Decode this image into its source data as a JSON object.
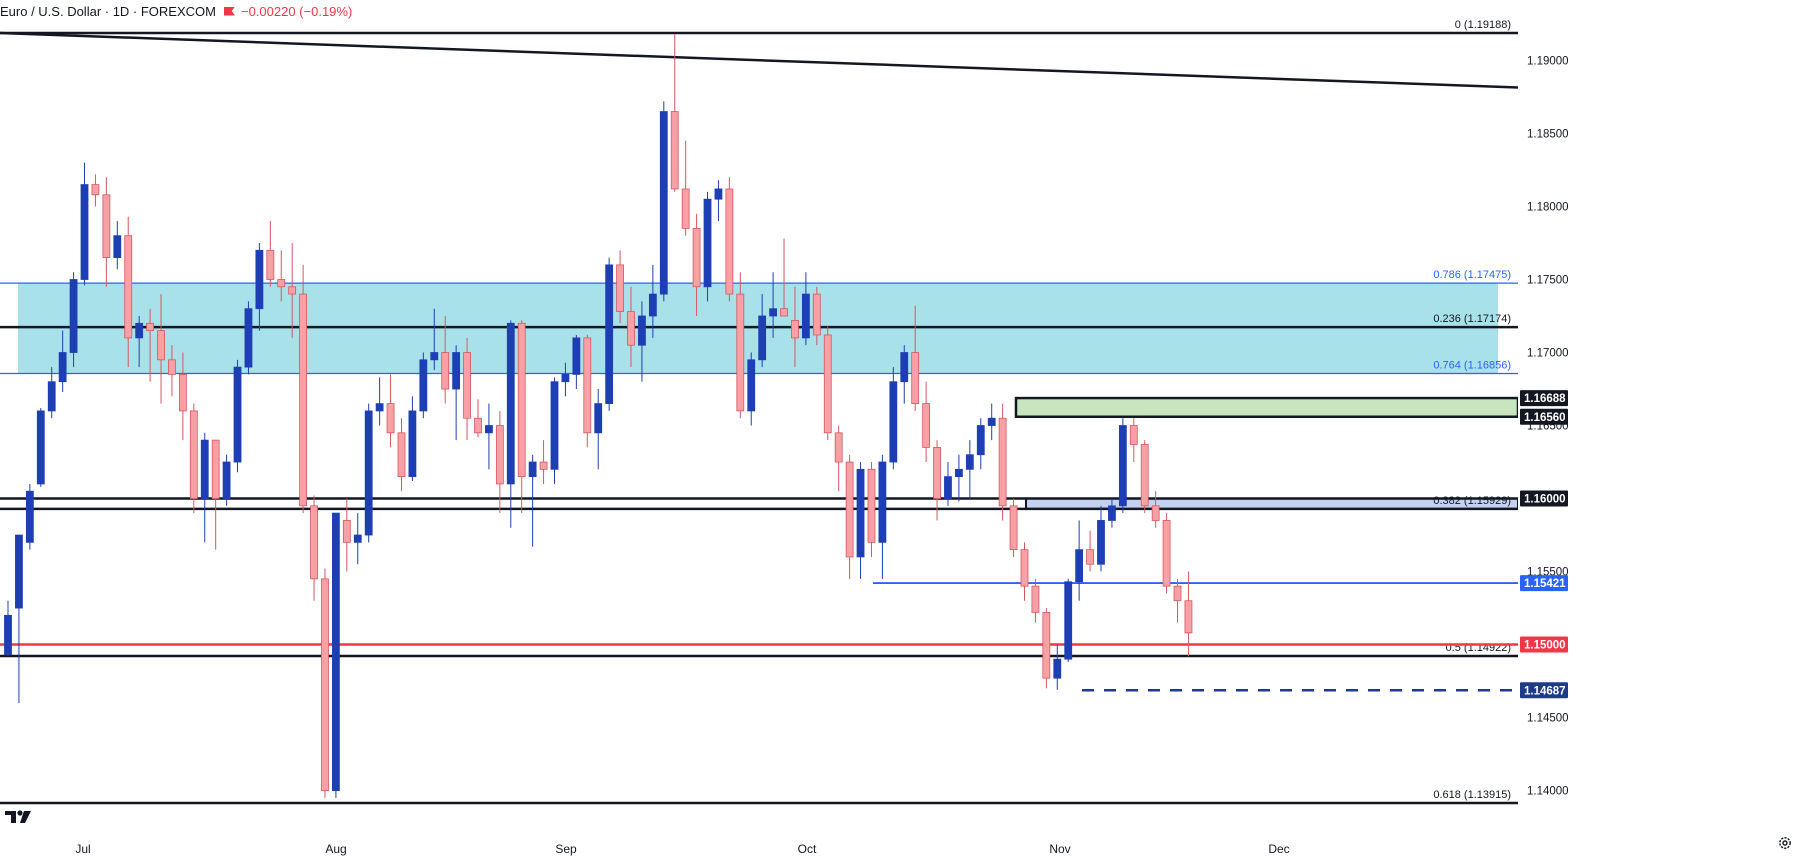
{
  "header": {
    "symbol": "Euro / U.S. Dollar · 1D · FOREXCOM",
    "change": "−0.00220 (−0.19%)"
  },
  "colors": {
    "up": "#1e3fb4",
    "down": "#f7a1a6",
    "down_border": "#d8565e",
    "zone": "#a9e1ea",
    "zone_green": "#c7e6c0",
    "red_level": "#f23645",
    "blue_line": "#2962ff",
    "axis_text": "#131722"
  },
  "chart_data": {
    "type": "candlestick",
    "ylim": [
      1.1385,
      1.1935
    ],
    "price_ticks": [
      "1.19000",
      "1.18500",
      "1.18000",
      "1.17500",
      "1.17000",
      "1.16500",
      "1.16000",
      "1.15500",
      "1.15000",
      "1.14500",
      "1.14000"
    ],
    "x_labels": [
      "Jul",
      "Aug",
      "Sep",
      "Oct",
      "Nov",
      "Dec"
    ],
    "candles": [
      {
        "o": 1.1493,
        "h": 1.153,
        "l": 1.1492,
        "c": 1.152
      },
      {
        "o": 1.1525,
        "h": 1.1575,
        "l": 1.146,
        "c": 1.1575
      },
      {
        "o": 1.157,
        "h": 1.161,
        "l": 1.1565,
        "c": 1.1605
      },
      {
        "o": 1.161,
        "h": 1.1662,
        "l": 1.1608,
        "c": 1.166
      },
      {
        "o": 1.166,
        "h": 1.169,
        "l": 1.1655,
        "c": 1.168
      },
      {
        "o": 1.168,
        "h": 1.1715,
        "l": 1.1673,
        "c": 1.17
      },
      {
        "o": 1.17,
        "h": 1.1755,
        "l": 1.169,
        "c": 1.175
      },
      {
        "o": 1.175,
        "h": 1.183,
        "l": 1.1746,
        "c": 1.1815
      },
      {
        "o": 1.1815,
        "h": 1.1822,
        "l": 1.18,
        "c": 1.1808
      },
      {
        "o": 1.1808,
        "h": 1.182,
        "l": 1.1745,
        "c": 1.1765
      },
      {
        "o": 1.1765,
        "h": 1.179,
        "l": 1.1757,
        "c": 1.178
      },
      {
        "o": 1.178,
        "h": 1.1793,
        "l": 1.169,
        "c": 1.171
      },
      {
        "o": 1.171,
        "h": 1.1725,
        "l": 1.169,
        "c": 1.172
      },
      {
        "o": 1.172,
        "h": 1.173,
        "l": 1.168,
        "c": 1.1715
      },
      {
        "o": 1.1715,
        "h": 1.174,
        "l": 1.1665,
        "c": 1.1695
      },
      {
        "o": 1.1695,
        "h": 1.1705,
        "l": 1.167,
        "c": 1.1685
      },
      {
        "o": 1.1685,
        "h": 1.17,
        "l": 1.164,
        "c": 1.166
      },
      {
        "o": 1.166,
        "h": 1.1665,
        "l": 1.159,
        "c": 1.16
      },
      {
        "o": 1.16,
        "h": 1.1645,
        "l": 1.157,
        "c": 1.164
      },
      {
        "o": 1.164,
        "h": 1.164,
        "l": 1.1565,
        "c": 1.16
      },
      {
        "o": 1.16,
        "h": 1.163,
        "l": 1.1595,
        "c": 1.1625
      },
      {
        "o": 1.1625,
        "h": 1.1695,
        "l": 1.1618,
        "c": 1.169
      },
      {
        "o": 1.169,
        "h": 1.1735,
        "l": 1.1685,
        "c": 1.173
      },
      {
        "o": 1.173,
        "h": 1.1775,
        "l": 1.1715,
        "c": 1.177
      },
      {
        "o": 1.177,
        "h": 1.179,
        "l": 1.1745,
        "c": 1.175
      },
      {
        "o": 1.175,
        "h": 1.177,
        "l": 1.1735,
        "c": 1.1745
      },
      {
        "o": 1.1745,
        "h": 1.1775,
        "l": 1.171,
        "c": 1.174
      },
      {
        "o": 1.174,
        "h": 1.176,
        "l": 1.159,
        "c": 1.1595
      },
      {
        "o": 1.1595,
        "h": 1.1602,
        "l": 1.153,
        "c": 1.1545
      },
      {
        "o": 1.1545,
        "h": 1.1552,
        "l": 1.1395,
        "c": 1.14
      },
      {
        "o": 1.14,
        "h": 1.159,
        "l": 1.1395,
        "c": 1.159
      },
      {
        "o": 1.1585,
        "h": 1.16,
        "l": 1.155,
        "c": 1.157
      },
      {
        "o": 1.157,
        "h": 1.159,
        "l": 1.1555,
        "c": 1.1575
      },
      {
        "o": 1.1575,
        "h": 1.1665,
        "l": 1.157,
        "c": 1.166
      },
      {
        "o": 1.166,
        "h": 1.1683,
        "l": 1.165,
        "c": 1.1665
      },
      {
        "o": 1.1665,
        "h": 1.1685,
        "l": 1.1635,
        "c": 1.1645
      },
      {
        "o": 1.1645,
        "h": 1.1655,
        "l": 1.1605,
        "c": 1.1615
      },
      {
        "o": 1.1615,
        "h": 1.167,
        "l": 1.1612,
        "c": 1.166
      },
      {
        "o": 1.166,
        "h": 1.17,
        "l": 1.1655,
        "c": 1.1695
      },
      {
        "o": 1.1695,
        "h": 1.173,
        "l": 1.1688,
        "c": 1.17
      },
      {
        "o": 1.17,
        "h": 1.1725,
        "l": 1.1665,
        "c": 1.1675
      },
      {
        "o": 1.1675,
        "h": 1.1705,
        "l": 1.164,
        "c": 1.17
      },
      {
        "o": 1.17,
        "h": 1.171,
        "l": 1.164,
        "c": 1.1655
      },
      {
        "o": 1.1655,
        "h": 1.1668,
        "l": 1.1642,
        "c": 1.1645
      },
      {
        "o": 1.1645,
        "h": 1.1665,
        "l": 1.162,
        "c": 1.165
      },
      {
        "o": 1.165,
        "h": 1.166,
        "l": 1.159,
        "c": 1.161
      },
      {
        "o": 1.161,
        "h": 1.1722,
        "l": 1.158,
        "c": 1.172
      },
      {
        "o": 1.172,
        "h": 1.1722,
        "l": 1.159,
        "c": 1.1615
      },
      {
        "o": 1.1615,
        "h": 1.163,
        "l": 1.1567,
        "c": 1.1625
      },
      {
        "o": 1.1625,
        "h": 1.164,
        "l": 1.161,
        "c": 1.162
      },
      {
        "o": 1.162,
        "h": 1.1683,
        "l": 1.161,
        "c": 1.168
      },
      {
        "o": 1.168,
        "h": 1.1693,
        "l": 1.167,
        "c": 1.1685
      },
      {
        "o": 1.1685,
        "h": 1.1712,
        "l": 1.1675,
        "c": 1.171
      },
      {
        "o": 1.171,
        "h": 1.1712,
        "l": 1.1635,
        "c": 1.1645
      },
      {
        "o": 1.1645,
        "h": 1.1675,
        "l": 1.162,
        "c": 1.1665
      },
      {
        "o": 1.1665,
        "h": 1.1765,
        "l": 1.166,
        "c": 1.176
      },
      {
        "o": 1.176,
        "h": 1.177,
        "l": 1.172,
        "c": 1.1728
      },
      {
        "o": 1.1728,
        "h": 1.1745,
        "l": 1.169,
        "c": 1.1705
      },
      {
        "o": 1.1705,
        "h": 1.1735,
        "l": 1.168,
        "c": 1.1725
      },
      {
        "o": 1.1725,
        "h": 1.176,
        "l": 1.171,
        "c": 1.174
      },
      {
        "o": 1.174,
        "h": 1.1872,
        "l": 1.1735,
        "c": 1.1865
      },
      {
        "o": 1.1865,
        "h": 1.1918,
        "l": 1.181,
        "c": 1.1812
      },
      {
        "o": 1.1812,
        "h": 1.1845,
        "l": 1.178,
        "c": 1.1785
      },
      {
        "o": 1.1785,
        "h": 1.1795,
        "l": 1.1725,
        "c": 1.1745
      },
      {
        "o": 1.1745,
        "h": 1.181,
        "l": 1.1735,
        "c": 1.1805
      },
      {
        "o": 1.1805,
        "h": 1.1818,
        "l": 1.179,
        "c": 1.1812
      },
      {
        "o": 1.1812,
        "h": 1.182,
        "l": 1.1735,
        "c": 1.174
      },
      {
        "o": 1.174,
        "h": 1.1755,
        "l": 1.1655,
        "c": 1.166
      },
      {
        "o": 1.166,
        "h": 1.17,
        "l": 1.165,
        "c": 1.1695
      },
      {
        "o": 1.1695,
        "h": 1.174,
        "l": 1.169,
        "c": 1.1725
      },
      {
        "o": 1.1725,
        "h": 1.1755,
        "l": 1.171,
        "c": 1.173
      },
      {
        "o": 1.173,
        "h": 1.1778,
        "l": 1.1725,
        "c": 1.1725
      },
      {
        "o": 1.1722,
        "h": 1.1745,
        "l": 1.169,
        "c": 1.171
      },
      {
        "o": 1.171,
        "h": 1.1755,
        "l": 1.1705,
        "c": 1.174
      },
      {
        "o": 1.174,
        "h": 1.1745,
        "l": 1.1705,
        "c": 1.1712
      },
      {
        "o": 1.1712,
        "h": 1.1718,
        "l": 1.164,
        "c": 1.1645
      },
      {
        "o": 1.1645,
        "h": 1.165,
        "l": 1.1605,
        "c": 1.1625
      },
      {
        "o": 1.1625,
        "h": 1.163,
        "l": 1.1545,
        "c": 1.156
      },
      {
        "o": 1.156,
        "h": 1.1625,
        "l": 1.1545,
        "c": 1.162
      },
      {
        "o": 1.162,
        "h": 1.1625,
        "l": 1.156,
        "c": 1.157
      },
      {
        "o": 1.157,
        "h": 1.163,
        "l": 1.1545,
        "c": 1.1625
      },
      {
        "o": 1.1625,
        "h": 1.169,
        "l": 1.162,
        "c": 1.168
      },
      {
        "o": 1.168,
        "h": 1.1705,
        "l": 1.1665,
        "c": 1.17
      },
      {
        "o": 1.17,
        "h": 1.1732,
        "l": 1.166,
        "c": 1.1665
      },
      {
        "o": 1.1665,
        "h": 1.168,
        "l": 1.1625,
        "c": 1.1635
      },
      {
        "o": 1.1635,
        "h": 1.164,
        "l": 1.1585,
        "c": 1.16
      },
      {
        "o": 1.16,
        "h": 1.1625,
        "l": 1.1595,
        "c": 1.1615
      },
      {
        "o": 1.1615,
        "h": 1.163,
        "l": 1.1598,
        "c": 1.162
      },
      {
        "o": 1.162,
        "h": 1.164,
        "l": 1.16,
        "c": 1.163
      },
      {
        "o": 1.163,
        "h": 1.1655,
        "l": 1.162,
        "c": 1.165
      },
      {
        "o": 1.165,
        "h": 1.1665,
        "l": 1.164,
        "c": 1.1655
      },
      {
        "o": 1.1655,
        "h": 1.1665,
        "l": 1.1585,
        "c": 1.1595
      },
      {
        "o": 1.1595,
        "h": 1.16,
        "l": 1.156,
        "c": 1.1565
      },
      {
        "o": 1.1565,
        "h": 1.157,
        "l": 1.153,
        "c": 1.154
      },
      {
        "o": 1.154,
        "h": 1.1545,
        "l": 1.1515,
        "c": 1.1522
      },
      {
        "o": 1.1522,
        "h": 1.1525,
        "l": 1.147,
        "c": 1.1477
      },
      {
        "o": 1.1477,
        "h": 1.15,
        "l": 1.1469,
        "c": 1.149
      },
      {
        "o": 1.149,
        "h": 1.1545,
        "l": 1.1488,
        "c": 1.1543
      },
      {
        "o": 1.1543,
        "h": 1.1585,
        "l": 1.153,
        "c": 1.1565
      },
      {
        "o": 1.1565,
        "h": 1.1578,
        "l": 1.155,
        "c": 1.1555
      },
      {
        "o": 1.1555,
        "h": 1.1595,
        "l": 1.155,
        "c": 1.1585
      },
      {
        "o": 1.1585,
        "h": 1.16,
        "l": 1.158,
        "c": 1.1595
      },
      {
        "o": 1.1595,
        "h": 1.1655,
        "l": 1.159,
        "c": 1.165
      },
      {
        "o": 1.165,
        "h": 1.1655,
        "l": 1.1625,
        "c": 1.1637
      },
      {
        "o": 1.1637,
        "h": 1.164,
        "l": 1.159,
        "c": 1.1595
      },
      {
        "o": 1.1595,
        "h": 1.1605,
        "l": 1.158,
        "c": 1.1585
      },
      {
        "o": 1.1585,
        "h": 1.159,
        "l": 1.1535,
        "c": 1.154
      },
      {
        "o": 1.154,
        "h": 1.1545,
        "l": 1.1515,
        "c": 1.153
      },
      {
        "o": 1.153,
        "h": 1.155,
        "l": 1.1492,
        "c": 1.1508
      }
    ],
    "levels": [
      {
        "price": 1.19188,
        "label": "0 (1.19188)"
      },
      {
        "price": 1.17475,
        "label": "0.786 (1.17475)"
      },
      {
        "price": 1.17174,
        "label": "0.236 (1.17174)"
      },
      {
        "price": 1.16856,
        "label": "0.764 (1.16856)"
      },
      {
        "price": 1.15929,
        "label": "0.382 (1.15929)"
      },
      {
        "price": 1.14922,
        "label": "0.5 (1.14922)"
      },
      {
        "price": 1.13915,
        "label": "0.618 (1.13915)"
      }
    ],
    "price_tags": [
      {
        "value": "1.16688",
        "price": 1.16688,
        "style": "dark"
      },
      {
        "value": "1.16560",
        "price": 1.1656,
        "style": "dark"
      },
      {
        "value": "1.16000",
        "price": 1.16,
        "style": "dark"
      },
      {
        "value": "1.15421",
        "price": 1.15421,
        "style": "blue"
      },
      {
        "value": "1.15000",
        "price": 1.15,
        "style": "red"
      },
      {
        "value": "1.14687",
        "price": 1.14687,
        "style": "navy"
      }
    ],
    "trendline": {
      "from": 1.19188,
      "to": 1.18815
    }
  }
}
